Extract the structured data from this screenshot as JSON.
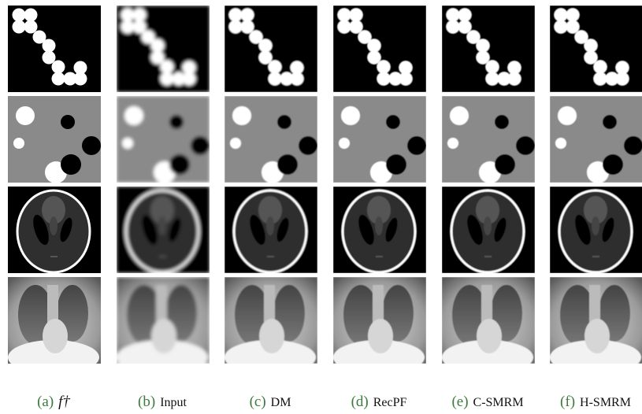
{
  "captions": [
    {
      "label": "(a)",
      "text": "f†"
    },
    {
      "label": "(b)",
      "text": "Input"
    },
    {
      "label": "(c)",
      "text": "DM"
    },
    {
      "label": "(d)",
      "text": "RecPF"
    },
    {
      "label": "(e)",
      "text": "C-SMRM"
    },
    {
      "label": "(f)",
      "text": "H-SMRM"
    }
  ]
}
